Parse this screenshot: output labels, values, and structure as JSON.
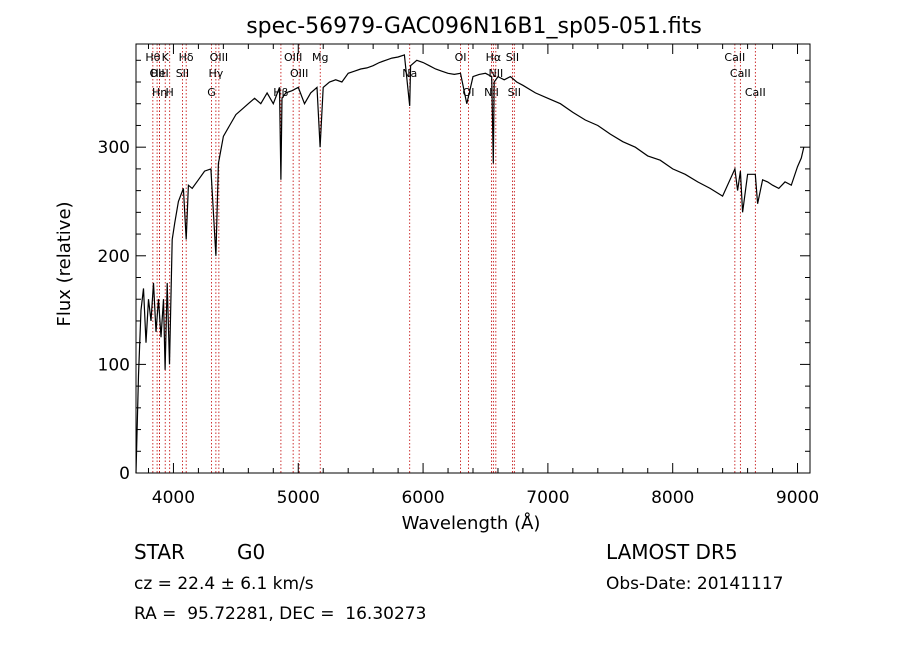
{
  "chart_data": {
    "type": "line",
    "title": "spec-56979-GAC096N16B1_sp05-051.fits",
    "xlabel": "Wavelength (Å)",
    "ylabel": "Flux (relative)",
    "xlim": [
      3700,
      9100
    ],
    "ylim": [
      0,
      395
    ],
    "xticks": [
      4000,
      5000,
      6000,
      7000,
      8000,
      9000
    ],
    "yticks": [
      0,
      100,
      200,
      300
    ],
    "grid": false,
    "line_color": "#000000",
    "marker_color": "#c00000",
    "series": [
      {
        "x": [
          3700,
          3720,
          3740,
          3760,
          3780,
          3800,
          3820,
          3840,
          3860,
          3880,
          3900,
          3920,
          3933,
          3950,
          3968,
          3990,
          4010,
          4040,
          4080,
          4102,
          4120,
          4150,
          4200,
          4250,
          4300,
          4340,
          4360,
          4400,
          4450,
          4500,
          4550,
          4600,
          4650,
          4700,
          4750,
          4800,
          4850,
          4861,
          4870,
          4900,
          4950,
          5000,
          5050,
          5100,
          5150,
          5175,
          5200,
          5250,
          5300,
          5350,
          5400,
          5450,
          5500,
          5550,
          5600,
          5650,
          5700,
          5750,
          5800,
          5850,
          5893,
          5900,
          5950,
          6000,
          6050,
          6100,
          6150,
          6200,
          6250,
          6300,
          6350,
          6400,
          6450,
          6500,
          6550,
          6563,
          6570,
          6600,
          6650,
          6700,
          6750,
          6800,
          6900,
          7000,
          7100,
          7200,
          7300,
          7400,
          7500,
          7600,
          7700,
          7800,
          7900,
          8000,
          8100,
          8200,
          8300,
          8400,
          8498,
          8520,
          8542,
          8560,
          8600,
          8662,
          8680,
          8720,
          8760,
          8800,
          8850,
          8900,
          8950,
          9000,
          9030,
          9050
        ],
        "y": [
          0,
          90,
          150,
          170,
          120,
          160,
          140,
          175,
          130,
          160,
          125,
          160,
          95,
          175,
          100,
          215,
          230,
          250,
          262,
          215,
          265,
          262,
          270,
          278,
          280,
          200,
          285,
          310,
          320,
          330,
          335,
          340,
          345,
          340,
          350,
          340,
          355,
          270,
          345,
          350,
          352,
          355,
          340,
          350,
          355,
          300,
          355,
          360,
          362,
          360,
          368,
          370,
          372,
          373,
          375,
          378,
          380,
          382,
          383,
          385,
          338,
          375,
          380,
          378,
          375,
          372,
          370,
          368,
          367,
          368,
          340,
          365,
          367,
          368,
          365,
          285,
          360,
          365,
          362,
          365,
          360,
          357,
          350,
          345,
          340,
          332,
          325,
          320,
          312,
          305,
          300,
          292,
          288,
          280,
          275,
          268,
          262,
          255,
          280,
          260,
          278,
          240,
          275,
          275,
          248,
          270,
          268,
          265,
          262,
          268,
          265,
          282,
          290,
          300
        ]
      }
    ],
    "lines": [
      {
        "x": 3835,
        "label": "Hθ",
        "row": 1
      },
      {
        "x": 3869,
        "label": "OII",
        "row": 2
      },
      {
        "x": 3889,
        "label": "Hη",
        "row": 3
      },
      {
        "x": 3934,
        "label": "K",
        "row": 1
      },
      {
        "x": 3889,
        "label": "HeI",
        "row": 2
      },
      {
        "x": 3970,
        "label": "H",
        "row": 3
      },
      {
        "x": 4102,
        "label": "Hδ",
        "row": 1
      },
      {
        "x": 4072,
        "label": "SII",
        "row": 2
      },
      {
        "x": 4340,
        "label": "Hγ",
        "row": 2
      },
      {
        "x": 4364,
        "label": "OIII",
        "row": 1
      },
      {
        "x": 4305,
        "label": "G",
        "row": 3
      },
      {
        "x": 4861,
        "label": "Hβ",
        "row": 3
      },
      {
        "x": 4959,
        "label": "OIII",
        "row": 1
      },
      {
        "x": 5007,
        "label": "OIII",
        "row": 2
      },
      {
        "x": 5176,
        "label": "Mg",
        "row": 1
      },
      {
        "x": 5893,
        "label": "Na",
        "row": 2
      },
      {
        "x": 6300,
        "label": "OI",
        "row": 1
      },
      {
        "x": 6364,
        "label": "OI",
        "row": 3
      },
      {
        "x": 6548,
        "label": "NII",
        "row": 3
      },
      {
        "x": 6563,
        "label": "Hα",
        "row": 1
      },
      {
        "x": 6583,
        "label": "NII",
        "row": 2
      },
      {
        "x": 6716,
        "label": "SII",
        "row": 1
      },
      {
        "x": 6731,
        "label": "SII",
        "row": 3
      },
      {
        "x": 8498,
        "label": "CaII",
        "row": 1
      },
      {
        "x": 8542,
        "label": "CaII",
        "row": 2
      },
      {
        "x": 8662,
        "label": "CaII",
        "row": 3
      }
    ]
  },
  "info": {
    "object_class": "STAR",
    "subclass": "G0",
    "survey": "LAMOST DR5",
    "redshift": "cz = 22.4 ± 6.1 km/s",
    "obs_date": "Obs-Date: 20141117",
    "coords": "RA =  95.72281, DEC =  16.30273"
  }
}
